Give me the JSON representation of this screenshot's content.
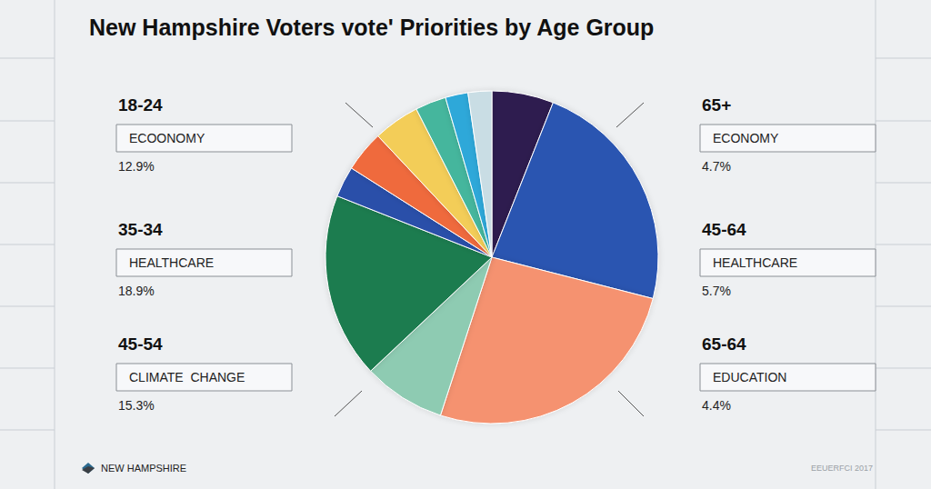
{
  "chart_data": {
    "type": "pie",
    "title": "New Hampshire Voters vote' Priorities by Age Group",
    "values": [
      6,
      23,
      26,
      8,
      18,
      3,
      4,
      4.5,
      3,
      2.2,
      2.3
    ],
    "colors": [
      "#2e1b50",
      "#2b55b1",
      "#f59270",
      "#8ecbb2",
      "#1f7b50",
      "#2c4fa9",
      "#ef6b3d",
      "#f3cd58",
      "#44b69d",
      "#2fa8d9",
      "#c9dde4"
    ],
    "data_labels": false,
    "annotations": {
      "left": [
        {
          "age": "18-24",
          "topic": "ECOONOMY",
          "percent": "12.9%"
        },
        {
          "age": "35-34",
          "topic": "HEALTHCARE",
          "percent": "18.9%"
        },
        {
          "age": "45-54",
          "topic": "CLIMATE  CHANGE",
          "percent": "15.3%"
        }
      ],
      "right": [
        {
          "age": "65+",
          "topic": "ECONOMY",
          "percent": "4.7%"
        },
        {
          "age": "45-64",
          "topic": "HEALTHCARE",
          "percent": "5.7%"
        },
        {
          "age": "65-64",
          "topic": "EDUCATION",
          "percent": "4.4%"
        }
      ]
    },
    "logo": "NEW HAMPSHIRE",
    "footnote": "EEUERFCI 2017"
  }
}
